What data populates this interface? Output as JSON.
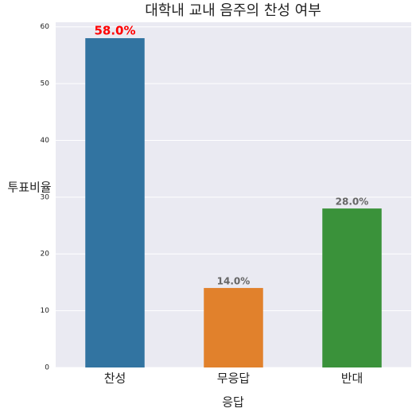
{
  "chart_data": {
    "type": "bar",
    "title": "대학내 교내 음주의 찬성 여부",
    "x_label": "응답",
    "y_label": "투표비율",
    "categories": [
      "찬성",
      "무응답",
      "반대"
    ],
    "values": [
      58,
      14,
      28
    ],
    "value_labels": [
      "58.0%",
      "14.0%",
      "28.0%"
    ],
    "colors": [
      "#3274a1",
      "#e1812c",
      "#3a923a"
    ],
    "value_label_colors": [
      "#ff0000",
      "#666666",
      "#666666"
    ],
    "ylim": [
      0,
      60.8
    ],
    "yticks": [
      0,
      10,
      20,
      30,
      40,
      50,
      60
    ],
    "grid": true
  }
}
